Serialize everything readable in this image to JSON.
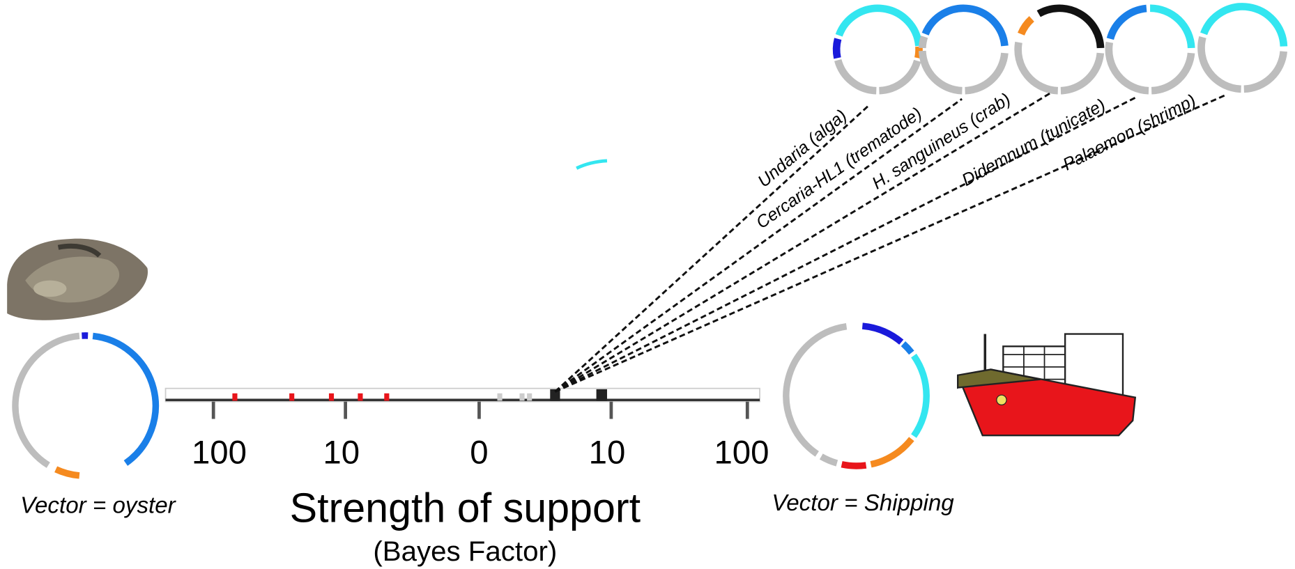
{
  "axis": {
    "ticks": [
      100,
      10,
      0,
      10,
      100
    ],
    "title": "Strength of support",
    "subtitle": "(Bayes Factor)"
  },
  "vectors": [
    {
      "label": "Vector = oyster"
    },
    {
      "label": "Vector = Shipping"
    }
  ],
  "species": [
    {
      "label": "Undaria (alga)"
    },
    {
      "label": "Cercaria-HL1 (trematode)"
    },
    {
      "label": "H. sanguineus (crab)"
    },
    {
      "label": "Didemnum (tunicate)"
    },
    {
      "label": "Palaemon (shrimp)"
    }
  ]
}
